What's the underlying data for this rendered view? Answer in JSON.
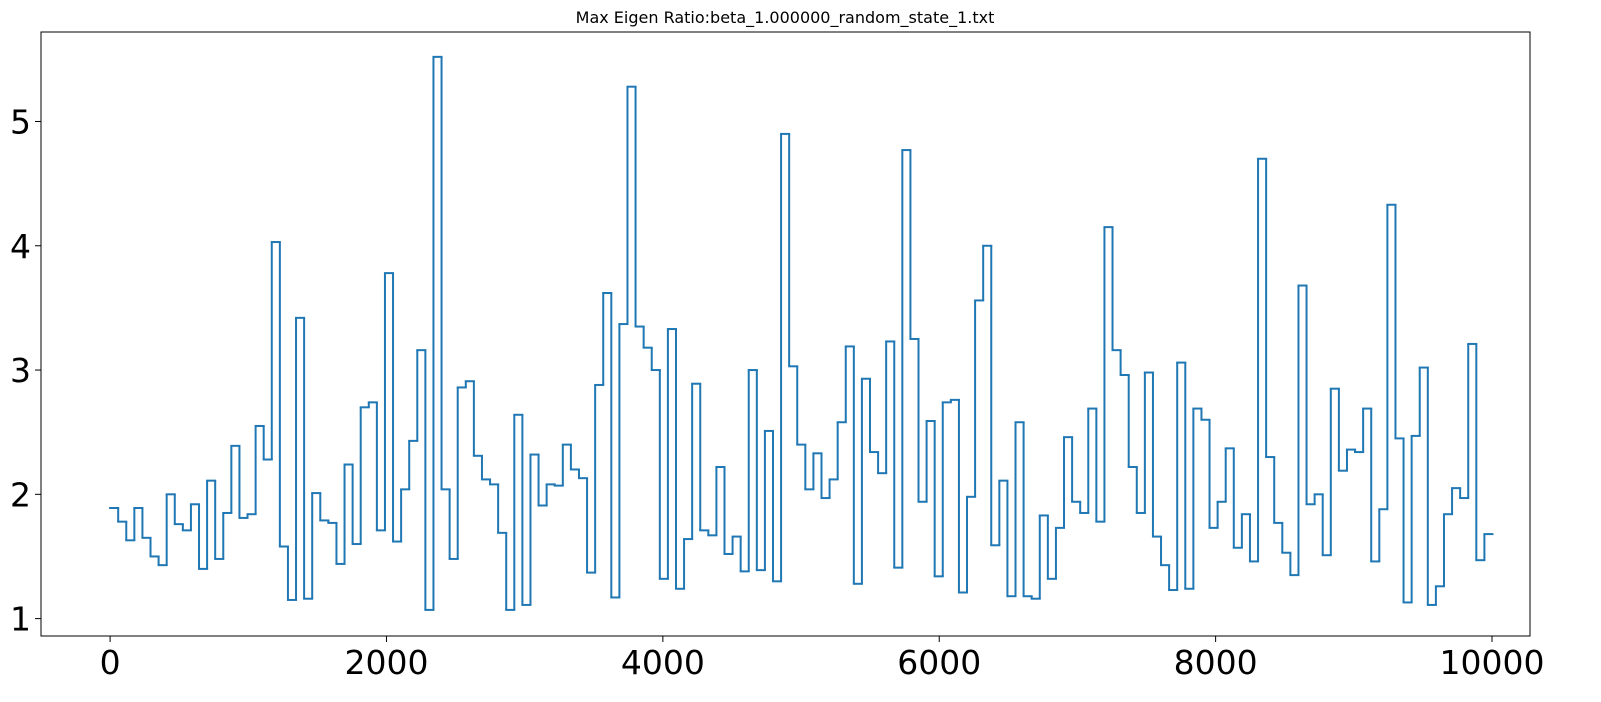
{
  "chart_data": {
    "type": "step",
    "title": "Max Eigen Ratio:beta_1.000000_random_state_1.txt",
    "x": [
      0,
      58.5,
      117,
      175.5,
      234,
      292.5,
      351,
      409.5,
      468,
      526.5,
      585,
      643.5,
      702,
      760.5,
      819,
      877.5,
      936,
      994.5,
      1053,
      1111.5,
      1170,
      1228.5,
      1287,
      1345.5,
      1404,
      1462.5,
      1521,
      1579.5,
      1638,
      1696.5,
      1755,
      1813.5,
      1872,
      1930.5,
      1989,
      2047.5,
      2106,
      2164.5,
      2223,
      2281.5,
      2340,
      2398.5,
      2457,
      2515.5,
      2574,
      2632.5,
      2691,
      2749.5,
      2808,
      2866.5,
      2925,
      2983.5,
      3042,
      3100.5,
      3159,
      3217.5,
      3276,
      3334.5,
      3393,
      3451.5,
      3510,
      3568.5,
      3627,
      3685.5,
      3744,
      3802.5,
      3861,
      3919.5,
      3978,
      4036.5,
      4095,
      4153.5,
      4212,
      4270.5,
      4329,
      4387.5,
      4446,
      4504.5,
      4563,
      4621.5,
      4680,
      4738.5,
      4797,
      4855.5,
      4914,
      4972.5,
      5031,
      5089.5,
      5148,
      5206.5,
      5265,
      5323.5,
      5382,
      5440.5,
      5499,
      5557.5,
      5616,
      5674.5,
      5733,
      5791.5,
      5850,
      5908.5,
      5967,
      6025.5,
      6084,
      6142.5,
      6201,
      6259.5,
      6318,
      6376.5,
      6435,
      6493.5,
      6552,
      6610.5,
      6669,
      6727.5,
      6786,
      6844.5,
      6903,
      6961.5,
      7020,
      7078.5,
      7137,
      7195.5,
      7254,
      7312.5,
      7371,
      7429.5,
      7488,
      7546.5,
      7605,
      7663.5,
      7722,
      7780.5,
      7839,
      7897.5,
      7956,
      8014.5,
      8073,
      8131.5,
      8190,
      8248.5,
      8307,
      8365.5,
      8424,
      8482.5,
      8541,
      8599.5,
      8658,
      8716.5,
      8775,
      8833.5,
      8892,
      8950.5,
      9009,
      9067.5,
      9126,
      9184.5,
      9243,
      9301.5,
      9360,
      9418.5,
      9477,
      9535.5,
      9594,
      9652.5,
      9711,
      9769.5,
      9828,
      9886.5,
      9945,
      10003.5
    ],
    "values": [
      1.89,
      1.89,
      1.78,
      1.63,
      1.89,
      1.65,
      1.5,
      1.43,
      2.0,
      1.76,
      1.71,
      1.92,
      1.4,
      2.11,
      1.48,
      1.85,
      2.39,
      1.81,
      1.84,
      2.55,
      2.28,
      4.03,
      1.58,
      1.15,
      3.42,
      1.16,
      2.01,
      1.79,
      1.77,
      1.44,
      2.24,
      1.6,
      2.7,
      2.74,
      1.71,
      3.78,
      1.62,
      2.04,
      2.43,
      3.16,
      1.07,
      5.52,
      2.04,
      1.48,
      2.86,
      2.91,
      2.31,
      2.12,
      2.08,
      1.69,
      1.07,
      2.64,
      1.11,
      2.32,
      1.91,
      2.08,
      2.07,
      2.4,
      2.2,
      2.13,
      1.37,
      2.88,
      3.62,
      1.17,
      3.37,
      5.28,
      3.35,
      3.18,
      3.0,
      1.32,
      3.33,
      1.24,
      1.64,
      2.89,
      1.71,
      1.67,
      2.22,
      1.52,
      1.66,
      1.38,
      3.0,
      1.39,
      2.51,
      1.3,
      4.9,
      3.03,
      2.4,
      2.04,
      2.33,
      1.97,
      2.12,
      2.58,
      3.19,
      1.28,
      2.93,
      2.34,
      2.17,
      3.23,
      1.41,
      4.77,
      3.25,
      1.94,
      2.59,
      1.34,
      2.74,
      2.76,
      1.21,
      1.98,
      3.56,
      4.0,
      1.59,
      2.11,
      1.18,
      2.58,
      1.18,
      1.16,
      1.83,
      1.32,
      1.73,
      2.46,
      1.94,
      1.85,
      2.69,
      1.78,
      4.15,
      3.16,
      2.96,
      2.22,
      1.85,
      2.98,
      1.66,
      1.43,
      1.23,
      3.06,
      1.24,
      2.69,
      2.6,
      1.73,
      1.94,
      2.37,
      1.57,
      1.84,
      1.46,
      4.7,
      2.3,
      1.77,
      1.53,
      1.35,
      3.68,
      1.92,
      2.0,
      1.51,
      2.85,
      2.19,
      2.36,
      2.34,
      2.69,
      1.46,
      1.88,
      4.33,
      2.45,
      1.13,
      2.47,
      3.02,
      1.11,
      1.26,
      1.84,
      2.05,
      1.97,
      3.21,
      1.47,
      1.68
    ],
    "color": "#1f77b4",
    "xlim": [
      -500,
      10275
    ],
    "ylim": [
      0.86,
      5.72
    ],
    "xticks": [
      0,
      2000,
      4000,
      6000,
      8000,
      10000
    ],
    "yticks": [
      1,
      2,
      3,
      4,
      5
    ]
  }
}
